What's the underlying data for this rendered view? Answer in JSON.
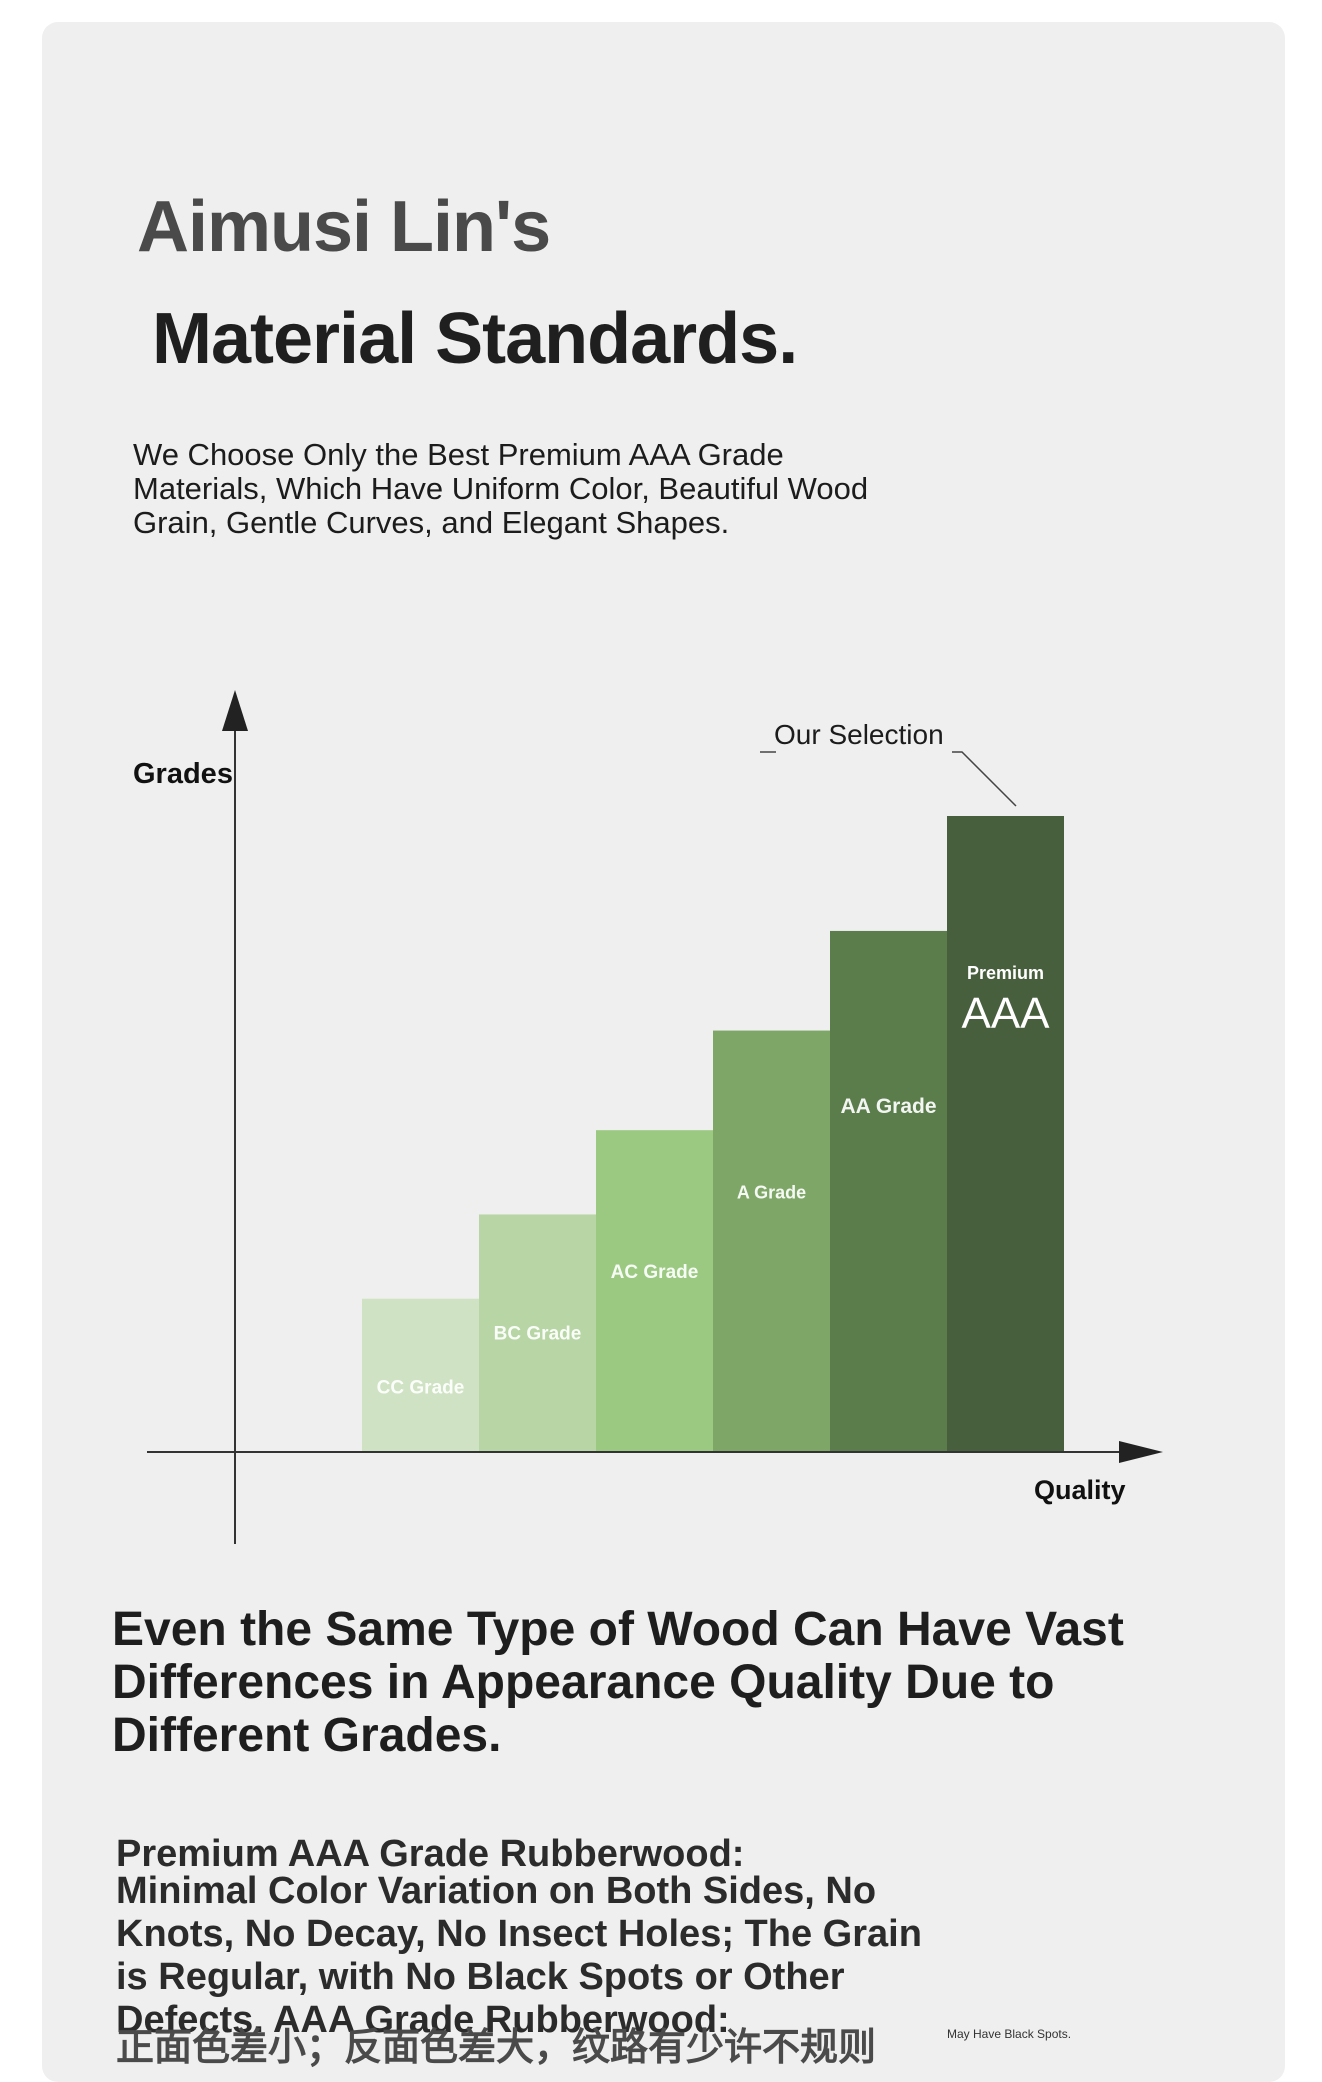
{
  "header": {
    "title_line1": "Aimusi Lin's",
    "title_line2": "Material Standards.",
    "intro": "We Choose Only the Best Premium AAA Grade Materials, Which Have Uniform Color, Beautiful Wood Grain, Gentle Curves, and Elegant Shapes."
  },
  "chart_data": {
    "type": "bar",
    "ylabel": "Grades",
    "xlabel": "Quality",
    "annotation": "Our Selection",
    "categories": [
      "CC Grade",
      "BC Grade",
      "AC Grade",
      "A Grade",
      "AA Grade",
      "Premium AAA"
    ],
    "bar_labels": [
      {
        "text": "CC Grade"
      },
      {
        "text": "BC Grade"
      },
      {
        "text": "AC Grade"
      },
      {
        "text": "A Grade"
      },
      {
        "text": "AA Grade"
      },
      {
        "text": "Premium",
        "big": "AAA"
      }
    ],
    "values": [
      1,
      1.55,
      2.1,
      2.75,
      3.4,
      4.15
    ],
    "colors": [
      "#cfe2c3",
      "#b7d5a5",
      "#9cc982",
      "#7ea767",
      "#5b7d4b",
      "#485f3e"
    ],
    "grid": false,
    "legend": "none"
  },
  "section": {
    "heading": "Even the Same Type of Wood Can Have Vast Differences in Appearance Quality Due to Different Grades.",
    "aaa_title": "Premium AAA Grade Rubberwood:",
    "aaa_desc": "Minimal Color Variation on Both Sides, No Knots, No Decay, No Insect Holes; The Grain is Regular, with No Black Spots or Other Defects. AAA Grade Rubberwood:",
    "chinese_text": "正面色差小；反面色差大，纹路有少许不规则",
    "small_note": "May Have Black Spots."
  }
}
